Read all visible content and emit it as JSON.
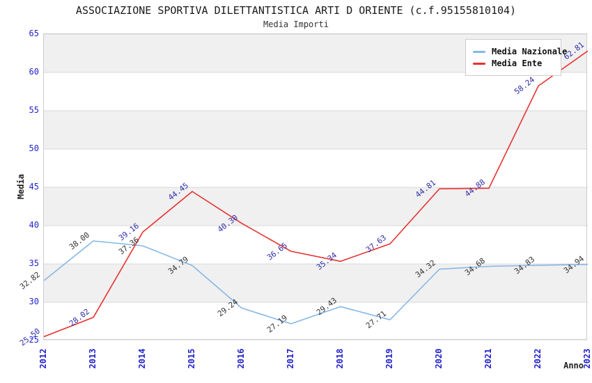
{
  "chart_data": {
    "type": "line",
    "title": "ASSOCIAZIONE SPORTIVA DILETTANTISTICA ARTI D ORIENTE (c.f.95155810104)",
    "subtitle": "Media Importi",
    "xlabel": "Anno",
    "ylabel": "Media",
    "categories": [
      "2012",
      "2013",
      "2014",
      "2015",
      "2016",
      "2017",
      "2018",
      "2019",
      "2020",
      "2021",
      "2022",
      "2023"
    ],
    "ylim": [
      25,
      65
    ],
    "ytick_step": 5,
    "grid": "horizontal-stripes",
    "legend_position": "top-right",
    "series": [
      {
        "name": "Media Nazionale",
        "color": "#85b7e6",
        "label_color": "#333333",
        "values": [
          32.82,
          38.0,
          37.36,
          34.79,
          29.24,
          27.19,
          29.43,
          27.71,
          34.32,
          34.68,
          34.83,
          34.94
        ]
      },
      {
        "name": "Media Ente",
        "color": "#e93030",
        "label_color": "#2e2ea8",
        "values": [
          25.5,
          28.02,
          39.16,
          44.45,
          40.3,
          36.65,
          35.34,
          37.63,
          44.81,
          44.88,
          58.24,
          62.81
        ]
      }
    ],
    "theme": {
      "axis_tick_color": "#2222cc",
      "stripe_color": "#f0f0f0",
      "grid_line_color": "#d8d8d8",
      "plot_border_color": "#cccccc"
    }
  }
}
